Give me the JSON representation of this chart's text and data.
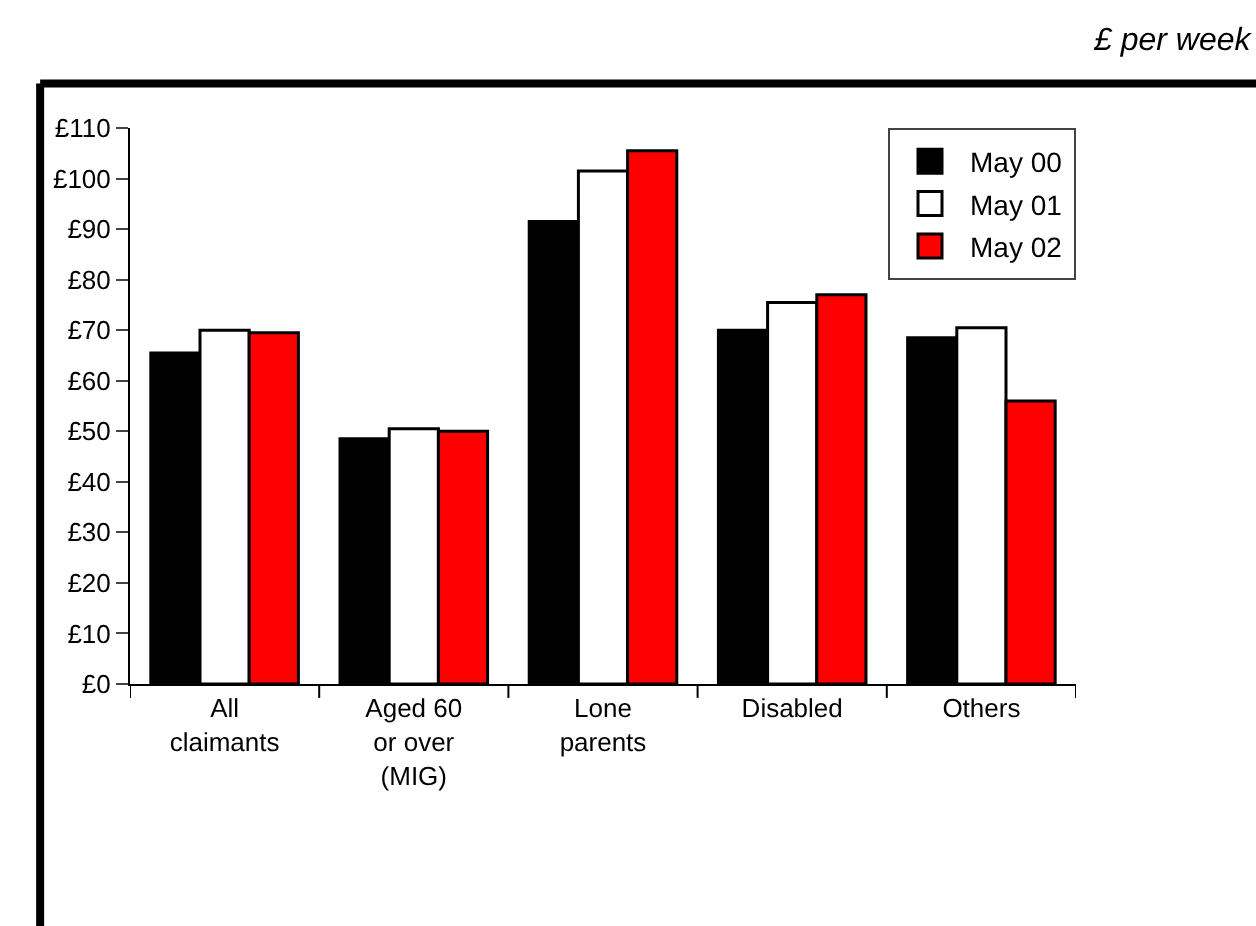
{
  "chart_data": {
    "type": "bar",
    "subtitle": "£ per week",
    "categories": [
      "All\nclaimants",
      "Aged 60\nor over\n(MIG)",
      "Lone\nparents",
      "Disabled",
      "Others"
    ],
    "series": [
      {
        "name": "May 00",
        "color": "#000000",
        "values": [
          65.5,
          48.5,
          91.5,
          70,
          68.5
        ]
      },
      {
        "name": "May 01",
        "color": "#ffffff",
        "values": [
          70,
          50.5,
          101.5,
          75.5,
          70.5
        ]
      },
      {
        "name": "May 02",
        "color": "#ff0000",
        "values": [
          69.5,
          50,
          105.5,
          77,
          56
        ]
      }
    ],
    "ylim": [
      0,
      110
    ],
    "yticks": [
      {
        "value": 0,
        "label": "£0"
      },
      {
        "value": 10,
        "label": "£10"
      },
      {
        "value": 20,
        "label": "£20"
      },
      {
        "value": 30,
        "label": "£30"
      },
      {
        "value": 40,
        "label": "£40"
      },
      {
        "value": 50,
        "label": "£50"
      },
      {
        "value": 60,
        "label": "£60"
      },
      {
        "value": 70,
        "label": "£70"
      },
      {
        "value": 80,
        "label": "£80"
      },
      {
        "value": 90,
        "label": "£90"
      },
      {
        "value": 100,
        "label": "£100"
      },
      {
        "value": 110,
        "label": "£110"
      }
    ],
    "legend": "top right"
  }
}
